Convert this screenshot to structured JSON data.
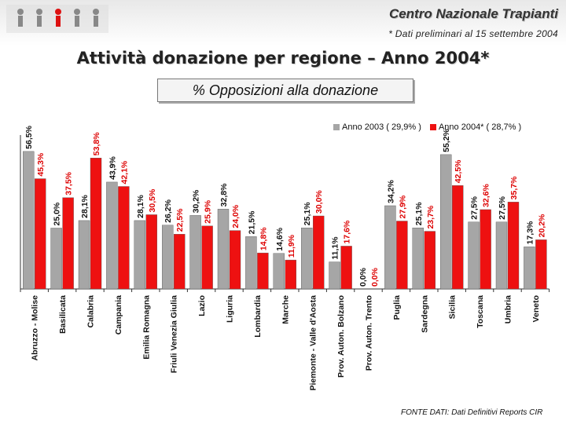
{
  "header": {
    "org_title": "Centro Nazionale Trapianti",
    "note": "* Dati preliminari al 15 settembre 2004"
  },
  "slide": {
    "title": "Attività donazione per regione – Anno 2004*",
    "subtitle": "% Opposizioni alla donazione",
    "source": "FONTE DATI: Dati Definitivi Reports CIR"
  },
  "colors": {
    "series_2003": "#a6a6a6",
    "series_2004": "#ee1111",
    "label_2004": "#dd0000",
    "label_2003": "#111111"
  },
  "chart_data": {
    "type": "bar",
    "title": "% Opposizioni alla donazione",
    "xlabel": "",
    "ylabel": "",
    "ylim": [
      0,
      60
    ],
    "grid": false,
    "legend_position": "top-right",
    "categories": [
      "Abruzzo - Molise",
      "Basilicata",
      "Calabria",
      "Campania",
      "Emilia Romagna",
      "Friuli Venezia Giulia",
      "Lazio",
      "Liguria",
      "Lombardia",
      "Marche",
      "Piemonte - Valle d'Aosta",
      "Prov. Auton. Bolzano",
      "Prov. Auton. Trento",
      "Puglia",
      "Sardegna",
      "Sicilia",
      "Toscana",
      "Umbria",
      "Veneto"
    ],
    "series": [
      {
        "name": "Anno 2003 ( 29,9% )",
        "values": [
          56.5,
          25.0,
          28.1,
          43.9,
          28.1,
          26.2,
          30.2,
          32.8,
          21.5,
          14.6,
          25.1,
          11.1,
          0.0,
          34.2,
          25.1,
          55.2,
          27.5,
          27.5,
          17.3
        ],
        "labels": [
          "56,5%",
          "25,0%",
          "28,1%",
          "43,9%",
          "28,1%",
          "26,2%",
          "30,2%",
          "32,8%",
          "21,5%",
          "14,6%",
          "25,1%",
          "11,1%",
          "0,0%",
          "34,2%",
          "25,1%",
          "55,2%",
          "27,5%",
          "27,5%",
          "17,3%"
        ]
      },
      {
        "name": "Anno 2004* ( 28,7% )",
        "values": [
          45.3,
          37.5,
          53.8,
          42.1,
          30.5,
          22.5,
          25.9,
          24.0,
          14.8,
          11.9,
          30.0,
          17.6,
          0.0,
          27.9,
          23.7,
          42.5,
          32.6,
          35.7,
          20.2
        ],
        "labels": [
          "45,3%",
          "37,5%",
          "53,8%",
          "42,1%",
          "30,5%",
          "22,5%",
          "25,9%",
          "24,0%",
          "14,8%",
          "11,9%",
          "30,0%",
          "17,6%",
          "0,0%",
          "27,9%",
          "23,7%",
          "42,5%",
          "32,6%",
          "35,7%",
          "20,2%"
        ]
      }
    ]
  }
}
